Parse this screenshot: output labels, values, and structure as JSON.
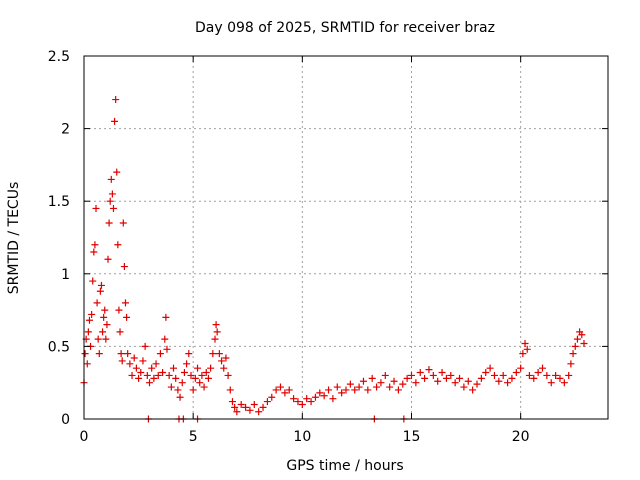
{
  "chart_data": {
    "type": "scatter",
    "title": "Day 098 of 2025, SRMTID for receiver braz",
    "xlabel": "GPS time / hours",
    "ylabel": "SRMTID / TECUs",
    "xlim": [
      0,
      24
    ],
    "ylim": [
      0,
      2.5
    ],
    "xticks": [
      0,
      5,
      10,
      15,
      20
    ],
    "xtick_labels": [
      "0",
      "5",
      "10",
      "15",
      "20"
    ],
    "yticks": [
      0,
      0.5,
      1,
      1.5,
      2,
      2.5
    ],
    "ytick_labels": [
      "0",
      "0.5",
      "1",
      "1.5",
      "2",
      "2.5"
    ],
    "grid": true,
    "marker": "plus",
    "color": "#e00000",
    "series": [
      {
        "name": "SRMTID",
        "points": [
          [
            0.0,
            0.25
          ],
          [
            0.05,
            0.45
          ],
          [
            0.1,
            0.55
          ],
          [
            0.15,
            0.38
          ],
          [
            0.2,
            0.6
          ],
          [
            0.25,
            0.68
          ],
          [
            0.3,
            0.5
          ],
          [
            0.35,
            0.72
          ],
          [
            0.4,
            0.95
          ],
          [
            0.45,
            1.15
          ],
          [
            0.5,
            1.2
          ],
          [
            0.55,
            1.45
          ],
          [
            0.6,
            0.8
          ],
          [
            0.65,
            0.55
          ],
          [
            0.7,
            0.45
          ],
          [
            0.75,
            0.88
          ],
          [
            0.8,
            0.92
          ],
          [
            0.85,
            0.6
          ],
          [
            0.9,
            0.7
          ],
          [
            0.95,
            0.75
          ],
          [
            1.0,
            0.55
          ],
          [
            1.05,
            0.65
          ],
          [
            1.1,
            1.1
          ],
          [
            1.15,
            1.35
          ],
          [
            1.2,
            1.5
          ],
          [
            1.25,
            1.65
          ],
          [
            1.3,
            1.55
          ],
          [
            1.35,
            1.45
          ],
          [
            1.4,
            2.05
          ],
          [
            1.45,
            2.2
          ],
          [
            1.5,
            1.7
          ],
          [
            1.55,
            1.2
          ],
          [
            1.6,
            0.75
          ],
          [
            1.65,
            0.6
          ],
          [
            1.7,
            0.45
          ],
          [
            1.75,
            0.4
          ],
          [
            1.8,
            1.35
          ],
          [
            1.85,
            1.05
          ],
          [
            1.9,
            0.8
          ],
          [
            1.95,
            0.7
          ],
          [
            2.0,
            0.45
          ],
          [
            2.1,
            0.38
          ],
          [
            2.2,
            0.3
          ],
          [
            2.3,
            0.42
          ],
          [
            2.4,
            0.35
          ],
          [
            2.5,
            0.28
          ],
          [
            2.6,
            0.32
          ],
          [
            2.7,
            0.4
          ],
          [
            2.8,
            0.5
          ],
          [
            2.9,
            0.3
          ],
          [
            3.0,
            0.25
          ],
          [
            3.1,
            0.35
          ],
          [
            3.2,
            0.28
          ],
          [
            3.3,
            0.38
          ],
          [
            3.4,
            0.3
          ],
          [
            3.5,
            0.45
          ],
          [
            3.6,
            0.32
          ],
          [
            3.7,
            0.55
          ],
          [
            3.75,
            0.7
          ],
          [
            3.8,
            0.48
          ],
          [
            3.9,
            0.3
          ],
          [
            4.0,
            0.22
          ],
          [
            4.1,
            0.35
          ],
          [
            4.2,
            0.28
          ],
          [
            4.3,
            0.2
          ],
          [
            4.4,
            0.15
          ],
          [
            4.5,
            0.25
          ],
          [
            4.6,
            0.32
          ],
          [
            4.7,
            0.38
          ],
          [
            4.8,
            0.45
          ],
          [
            4.9,
            0.3
          ],
          [
            5.0,
            0.2
          ],
          [
            5.1,
            0.28
          ],
          [
            5.2,
            0.35
          ],
          [
            5.3,
            0.25
          ],
          [
            5.4,
            0.3
          ],
          [
            5.5,
            0.22
          ],
          [
            5.6,
            0.32
          ],
          [
            5.7,
            0.28
          ],
          [
            5.8,
            0.35
          ],
          [
            5.9,
            0.45
          ],
          [
            6.0,
            0.55
          ],
          [
            6.05,
            0.65
          ],
          [
            6.1,
            0.6
          ],
          [
            6.2,
            0.45
          ],
          [
            6.3,
            0.4
          ],
          [
            6.4,
            0.35
          ],
          [
            6.5,
            0.42
          ],
          [
            6.6,
            0.3
          ],
          [
            6.7,
            0.2
          ],
          [
            6.8,
            0.12
          ],
          [
            6.9,
            0.08
          ],
          [
            7.0,
            0.05
          ],
          [
            7.2,
            0.1
          ],
          [
            7.4,
            0.08
          ],
          [
            7.6,
            0.06
          ],
          [
            7.8,
            0.1
          ],
          [
            8.0,
            0.05
          ],
          [
            8.2,
            0.08
          ],
          [
            8.4,
            0.12
          ],
          [
            8.6,
            0.15
          ],
          [
            8.8,
            0.2
          ],
          [
            9.0,
            0.22
          ],
          [
            9.2,
            0.18
          ],
          [
            9.4,
            0.2
          ],
          [
            9.6,
            0.14
          ],
          [
            9.8,
            0.12
          ],
          [
            10.0,
            0.1
          ],
          [
            10.2,
            0.14
          ],
          [
            10.4,
            0.12
          ],
          [
            10.6,
            0.15
          ],
          [
            10.8,
            0.18
          ],
          [
            11.0,
            0.16
          ],
          [
            11.2,
            0.2
          ],
          [
            11.4,
            0.14
          ],
          [
            11.6,
            0.22
          ],
          [
            11.8,
            0.18
          ],
          [
            12.0,
            0.2
          ],
          [
            12.2,
            0.24
          ],
          [
            12.4,
            0.2
          ],
          [
            12.6,
            0.22
          ],
          [
            12.8,
            0.26
          ],
          [
            13.0,
            0.2
          ],
          [
            13.2,
            0.28
          ],
          [
            13.4,
            0.22
          ],
          [
            13.6,
            0.25
          ],
          [
            13.8,
            0.3
          ],
          [
            14.0,
            0.22
          ],
          [
            14.2,
            0.26
          ],
          [
            14.4,
            0.2
          ],
          [
            14.6,
            0.24
          ],
          [
            14.8,
            0.28
          ],
          [
            15.0,
            0.3
          ],
          [
            15.2,
            0.25
          ],
          [
            15.4,
            0.32
          ],
          [
            15.6,
            0.28
          ],
          [
            15.8,
            0.34
          ],
          [
            16.0,
            0.3
          ],
          [
            16.2,
            0.26
          ],
          [
            16.4,
            0.32
          ],
          [
            16.6,
            0.28
          ],
          [
            16.8,
            0.3
          ],
          [
            17.0,
            0.25
          ],
          [
            17.2,
            0.28
          ],
          [
            17.4,
            0.22
          ],
          [
            17.6,
            0.26
          ],
          [
            17.8,
            0.2
          ],
          [
            18.0,
            0.24
          ],
          [
            18.2,
            0.28
          ],
          [
            18.4,
            0.32
          ],
          [
            18.6,
            0.35
          ],
          [
            18.8,
            0.3
          ],
          [
            19.0,
            0.26
          ],
          [
            19.2,
            0.3
          ],
          [
            19.4,
            0.25
          ],
          [
            19.6,
            0.28
          ],
          [
            19.8,
            0.32
          ],
          [
            20.0,
            0.35
          ],
          [
            20.1,
            0.45
          ],
          [
            20.2,
            0.52
          ],
          [
            20.3,
            0.48
          ],
          [
            20.4,
            0.3
          ],
          [
            20.6,
            0.28
          ],
          [
            20.8,
            0.32
          ],
          [
            21.0,
            0.35
          ],
          [
            21.2,
            0.3
          ],
          [
            21.4,
            0.25
          ],
          [
            21.6,
            0.3
          ],
          [
            21.8,
            0.28
          ],
          [
            22.0,
            0.25
          ],
          [
            22.2,
            0.3
          ],
          [
            22.3,
            0.38
          ],
          [
            22.4,
            0.45
          ],
          [
            22.5,
            0.5
          ],
          [
            22.6,
            0.55
          ],
          [
            22.7,
            0.6
          ],
          [
            22.8,
            0.58
          ],
          [
            22.9,
            0.52
          ],
          [
            2.95,
            0.0
          ],
          [
            4.35,
            0.0
          ],
          [
            4.55,
            0.0
          ],
          [
            5.2,
            0.0
          ],
          [
            13.3,
            0.0
          ],
          [
            14.65,
            0.0
          ]
        ]
      }
    ]
  }
}
